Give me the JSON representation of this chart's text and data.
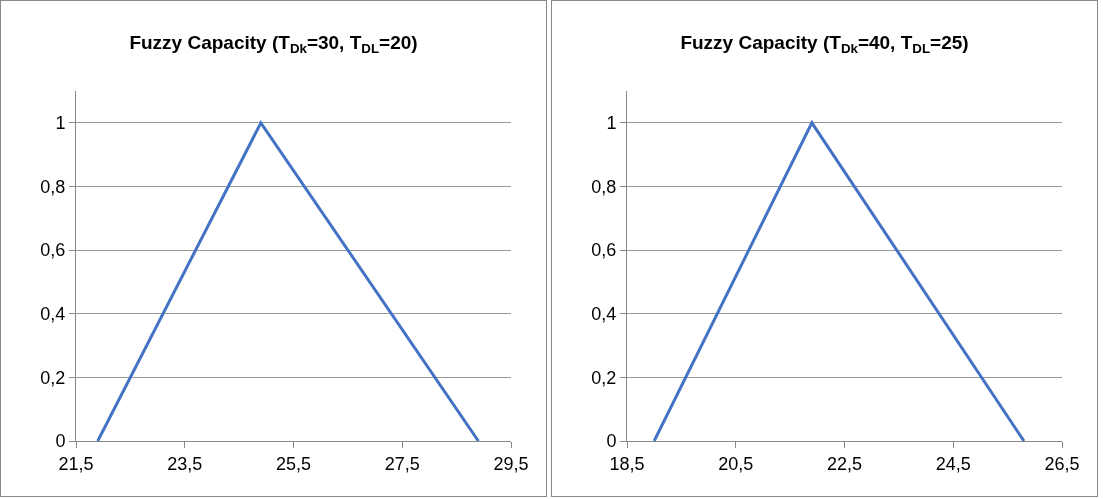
{
  "chart_data": [
    {
      "type": "line",
      "title": "Fuzzy Capacity (T$_{Dk}$=30, T$_{DL}$=20)",
      "x": [
        21.9,
        24.9,
        28.9
      ],
      "series": [
        {
          "color": "#4472c4",
          "values": [
            0,
            1,
            0
          ]
        }
      ],
      "xlim": [
        21.5,
        29.5
      ],
      "xticks": [
        {
          "value": 21.5,
          "label": "21,5"
        },
        {
          "value": 23.5,
          "label": "23,5"
        },
        {
          "value": 25.5,
          "label": "25,5"
        },
        {
          "value": 27.5,
          "label": "27,5"
        },
        {
          "value": 29.5,
          "label": "29,5"
        }
      ],
      "ylim": [
        0,
        1.1
      ],
      "yticks": [
        {
          "value": 0,
          "label": "0"
        },
        {
          "value": 0.2,
          "label": "0,2"
        },
        {
          "value": 0.4,
          "label": "0,4"
        },
        {
          "value": 0.6,
          "label": "0,6"
        },
        {
          "value": 0.8,
          "label": "0,8"
        },
        {
          "value": 1,
          "label": "1"
        }
      ],
      "grid": "y",
      "legend": false,
      "marker": "none",
      "line_style": "solid"
    },
    {
      "type": "line",
      "title": "Fuzzy Capacity (T$_{Dk}$=40, T$_{DL}$=25)",
      "x": [
        19.0,
        21.9,
        25.8
      ],
      "series": [
        {
          "color": "#4472c4",
          "values": [
            0,
            1,
            0
          ]
        }
      ],
      "xlim": [
        18.5,
        26.5
      ],
      "xticks": [
        {
          "value": 18.5,
          "label": "18,5"
        },
        {
          "value": 20.5,
          "label": "20,5"
        },
        {
          "value": 22.5,
          "label": "22,5"
        },
        {
          "value": 24.5,
          "label": "24,5"
        },
        {
          "value": 26.5,
          "label": "26,5"
        }
      ],
      "ylim": [
        0,
        1.1
      ],
      "yticks": [
        {
          "value": 0,
          "label": "0"
        },
        {
          "value": 0.2,
          "label": "0,2"
        },
        {
          "value": 0.4,
          "label": "0,4"
        },
        {
          "value": 0.6,
          "label": "0,6"
        },
        {
          "value": 0.8,
          "label": "0,8"
        },
        {
          "value": 1,
          "label": "1"
        }
      ],
      "grid": "y",
      "legend": false,
      "marker": "none",
      "line_style": "solid"
    }
  ]
}
